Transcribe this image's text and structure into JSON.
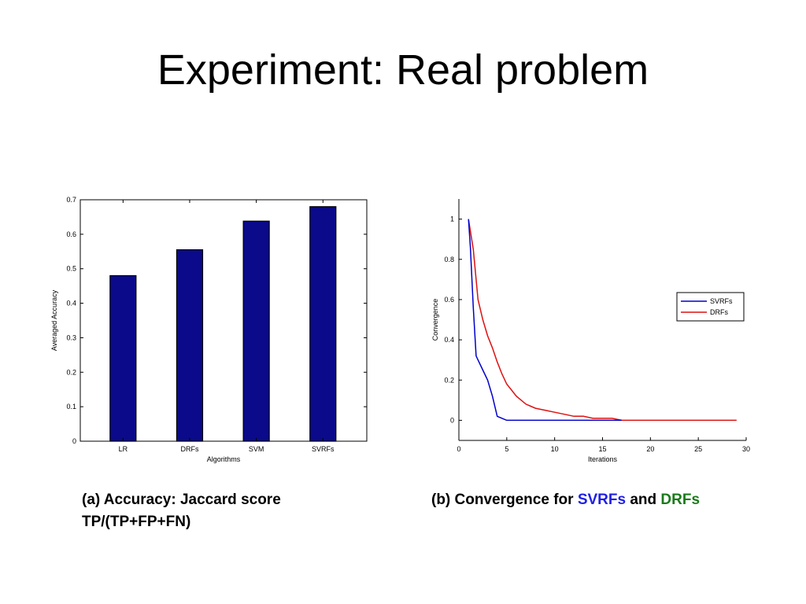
{
  "slide": {
    "title": "Experiment: Real problem"
  },
  "captions": {
    "a_line1": "(a) Accuracy: Jaccard score",
    "a_line2": "TP/(TP+FP+FN)",
    "b_prefix": "(b) Convergence for ",
    "b_series1": "SVRFs",
    "b_and": " and ",
    "b_series2": "DRFs"
  },
  "colors": {
    "bar": "#0a0a8a",
    "svrfs": "#0000cc",
    "drfs": "#dd1111",
    "caption_blue": "#1f1fe6",
    "caption_green": "#1a7a1a"
  },
  "chart_data": [
    {
      "type": "bar",
      "categories": [
        "LR",
        "DRFs",
        "SVM",
        "SVRFs"
      ],
      "values": [
        0.48,
        0.555,
        0.638,
        0.68
      ],
      "xlabel": "Algorithms",
      "ylabel": "Averaged Accuracy",
      "ylim": [
        0,
        0.7
      ],
      "yticks": [
        "0",
        "0.1",
        "0.2",
        "0.3",
        "0.4",
        "0.5",
        "0.6",
        "0.7"
      ]
    },
    {
      "type": "line",
      "xlabel": "Iterations",
      "ylabel": "Convergence",
      "xlim": [
        0,
        30
      ],
      "ylim": [
        -0.1,
        1.1
      ],
      "xticks": [
        "0",
        "5",
        "10",
        "15",
        "20",
        "25",
        "30"
      ],
      "yticks": [
        "0",
        "0.2",
        "0.4",
        "0.6",
        "0.8",
        "1"
      ],
      "legend_position": "right",
      "series": [
        {
          "name": "SVRFs",
          "x": [
            1,
            1.2,
            1.5,
            1.8,
            2,
            2.5,
            3,
            3.5,
            4,
            4.5,
            5,
            6,
            8,
            10,
            12,
            14,
            17
          ],
          "y": [
            1,
            0.86,
            0.56,
            0.32,
            0.3,
            0.25,
            0.2,
            0.12,
            0.02,
            0.01,
            0,
            0,
            0,
            0,
            0,
            0,
            0
          ]
        },
        {
          "name": "DRFs",
          "x": [
            1,
            1.5,
            2,
            2.5,
            3,
            3.5,
            4,
            4.5,
            5,
            5.5,
            6,
            6.5,
            7,
            7.5,
            8,
            9,
            10,
            11,
            12,
            13,
            14,
            15,
            16,
            17,
            29
          ],
          "y": [
            1,
            0.85,
            0.6,
            0.5,
            0.42,
            0.36,
            0.29,
            0.23,
            0.18,
            0.15,
            0.12,
            0.1,
            0.08,
            0.07,
            0.06,
            0.05,
            0.04,
            0.03,
            0.02,
            0.02,
            0.01,
            0.01,
            0.01,
            0,
            0
          ]
        }
      ]
    }
  ]
}
